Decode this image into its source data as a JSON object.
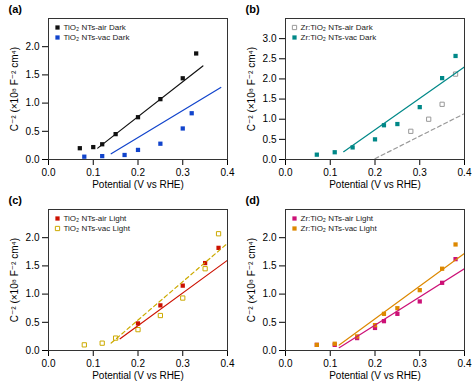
{
  "chart_data": [
    {
      "type": "scatter",
      "title": "(a)",
      "xlabel": "Potential (V vs RHE)",
      "ylabel": "C⁻² (×10⁸ F⁻² cm⁴)",
      "xlim": [
        0.0,
        0.4
      ],
      "xticks": [
        {
          "value": 0.0,
          "label": "0.0"
        },
        0.1,
        0.2,
        0.3,
        0.4
      ],
      "ylim": [
        0,
        2.5
      ],
      "yticks": [
        {
          "value": 0.0,
          "label": "0.0"
        },
        0.5,
        {
          "value": 1.0,
          "label": "1.0"
        },
        1.5,
        {
          "value": 2.0,
          "label": "2.0"
        }
      ],
      "grid": false,
      "legend": "upper-left",
      "series": [
        {
          "name": "TiO₂ NTs-air Dark",
          "type": "scatter",
          "color": "#111111",
          "marker": "square",
          "x": [
            0.07,
            0.1,
            0.12,
            0.15,
            0.2,
            0.25,
            0.3,
            0.33
          ],
          "values": [
            0.2,
            0.22,
            0.27,
            0.45,
            0.75,
            1.07,
            1.44,
            1.88
          ]
        },
        {
          "name": "TiO₂ NTs-vac Dark",
          "type": "scatter",
          "color": "#1144cc",
          "marker": "square",
          "x": [
            0.08,
            0.12,
            0.17,
            0.2,
            0.25,
            0.3,
            0.32
          ],
          "values": [
            0.05,
            0.06,
            0.08,
            0.17,
            0.28,
            0.55,
            0.82
          ]
        },
        {
          "type": "line",
          "color": "#111111",
          "line_style": "solid",
          "x": [
            0.11,
            0.345
          ],
          "values": [
            0.202,
            1.659
          ]
        },
        {
          "type": "line",
          "color": "#1144cc",
          "line_style": "solid",
          "x": [
            0.14,
            0.385
          ],
          "values": [
            0.102,
            1.278
          ]
        }
      ]
    },
    {
      "type": "scatter",
      "title": "(b)",
      "xlabel": "Potential (V vs RHE)",
      "ylabel": "C⁻² (×10⁸ F⁻² cm⁴)",
      "xlim": [
        0.0,
        0.4
      ],
      "xticks": [
        {
          "value": 0.0,
          "label": "0.0"
        },
        0.1,
        0.2,
        0.3,
        0.4
      ],
      "ylim": [
        0,
        3.5
      ],
      "yticks": [
        {
          "value": 0.0,
          "label": "0.0"
        },
        0.5,
        {
          "value": 1.0,
          "label": "1.0"
        },
        1.5,
        {
          "value": 2.0,
          "label": "2.0"
        },
        2.5,
        {
          "value": 3.0,
          "label": "3.0"
        }
      ],
      "grid": false,
      "legend": "upper-left",
      "series": [
        {
          "name": "Zr:TiO₂ NTs-air Dark",
          "type": "scatter",
          "color": "#999999",
          "marker": "open-square",
          "x": [
            0.28,
            0.32,
            0.35,
            0.38
          ],
          "values": [
            0.7,
            1.0,
            1.37,
            2.12
          ]
        },
        {
          "name": "Zr:TiO₂ NTs-vac Dark",
          "type": "scatter",
          "color": "#008888",
          "marker": "square",
          "x": [
            0.07,
            0.11,
            0.15,
            0.2,
            0.22,
            0.25,
            0.3,
            0.35,
            0.38
          ],
          "values": [
            0.12,
            0.18,
            0.3,
            0.5,
            0.85,
            0.88,
            1.3,
            2.02,
            2.57
          ]
        },
        {
          "type": "line",
          "color": "#999999",
          "line_style": "dashed",
          "x": [
            0.2,
            0.4
          ],
          "values": [
            0.02,
            1.14
          ]
        },
        {
          "type": "line",
          "color": "#008888",
          "line_style": "solid",
          "x": [
            0.13,
            0.4
          ],
          "values": [
            0.194,
            2.3
          ]
        }
      ]
    },
    {
      "type": "scatter",
      "title": "(c)",
      "xlabel": "Potential (V vs RHE)",
      "ylabel": "C⁻² (×10⁸ F⁻² cm⁴)",
      "xlim": [
        0.0,
        0.4
      ],
      "xticks": [
        {
          "value": 0.0,
          "label": "0.0"
        },
        0.1,
        0.2,
        0.3,
        0.4
      ],
      "ylim": [
        0,
        2.5
      ],
      "yticks": [
        {
          "value": 0.0,
          "label": "0.0"
        },
        0.5,
        {
          "value": 1.0,
          "label": "1.0"
        },
        1.5,
        {
          "value": 2.0,
          "label": "2.0"
        }
      ],
      "grid": false,
      "legend": "upper-left",
      "series": [
        {
          "name": "TiO₂ NTs-air Light",
          "type": "scatter",
          "color": "#cc1100",
          "marker": "square",
          "x": [
            0.2,
            0.25,
            0.3,
            0.35,
            0.38
          ],
          "values": [
            0.48,
            0.8,
            1.15,
            1.55,
            1.82
          ]
        },
        {
          "name": "TiO₂ NTs-vac Light",
          "type": "scatter",
          "color": "#ccaa00",
          "marker": "open-square",
          "x": [
            0.08,
            0.12,
            0.15,
            0.2,
            0.25,
            0.3,
            0.35,
            0.38
          ],
          "values": [
            0.1,
            0.13,
            0.22,
            0.37,
            0.62,
            0.93,
            1.45,
            2.07
          ]
        },
        {
          "type": "line",
          "color": "#cc1100",
          "line_style": "solid",
          "x": [
            0.16,
            0.4
          ],
          "values": [
            0.208,
            1.6
          ]
        },
        {
          "type": "line",
          "color": "#ccaa00",
          "line_style": "dashed",
          "x": [
            0.14,
            0.4
          ],
          "values": [
            0.132,
            1.9
          ]
        }
      ]
    },
    {
      "type": "scatter",
      "title": "(d)",
      "xlabel": "Potential (V vs RHE)",
      "ylabel": "C⁻² (×10⁸ F⁻² cm⁴)",
      "xlim": [
        0.0,
        0.4
      ],
      "xticks": [
        {
          "value": 0.0,
          "label": "0.0"
        },
        0.1,
        0.2,
        0.3,
        0.4
      ],
      "ylim": [
        0,
        2.5
      ],
      "yticks": [
        {
          "value": 0.0,
          "label": "0.0"
        },
        0.5,
        {
          "value": 1.0,
          "label": "1.0"
        },
        1.5,
        {
          "value": 2.0,
          "label": "2.0"
        }
      ],
      "grid": false,
      "legend": "upper-left",
      "series": [
        {
          "name": "Zr:TiO₂ NTs-air Light",
          "type": "scatter",
          "color": "#cc1177",
          "marker": "square",
          "x": [
            0.07,
            0.11,
            0.16,
            0.2,
            0.22,
            0.25,
            0.3,
            0.35,
            0.38
          ],
          "values": [
            0.1,
            0.1,
            0.22,
            0.4,
            0.52,
            0.65,
            0.87,
            1.2,
            1.62
          ]
        },
        {
          "name": "Zr:TiO₂ NTs-vac Light",
          "type": "scatter",
          "color": "#dd8800",
          "marker": "square",
          "x": [
            0.07,
            0.11,
            0.16,
            0.2,
            0.22,
            0.25,
            0.3,
            0.35,
            0.38
          ],
          "values": [
            0.1,
            0.12,
            0.25,
            0.45,
            0.65,
            0.75,
            1.07,
            1.45,
            1.88
          ]
        },
        {
          "type": "line",
          "color": "#cc1177",
          "line_style": "solid",
          "x": [
            0.12,
            0.4
          ],
          "values": [
            0.05,
            1.45
          ]
        },
        {
          "type": "line",
          "color": "#dd8800",
          "line_style": "solid",
          "x": [
            0.12,
            0.4
          ],
          "values": [
            0.096,
            1.72
          ]
        }
      ]
    }
  ]
}
